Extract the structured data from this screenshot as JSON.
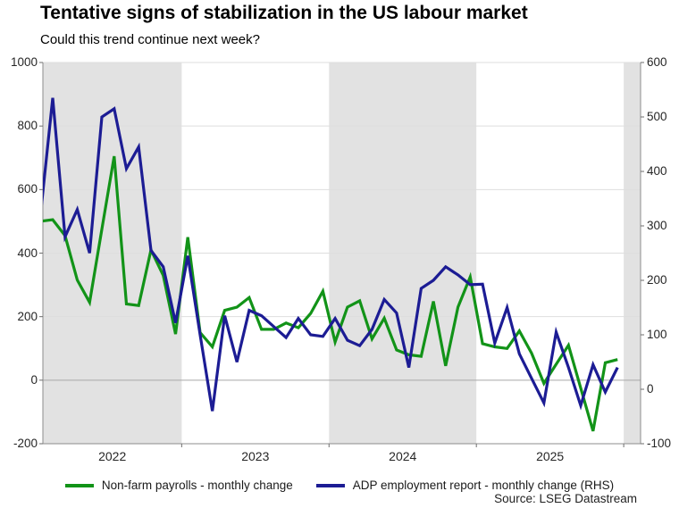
{
  "chart_data": {
    "type": "line",
    "title": "Tentative signs of stabilization in the US labour market",
    "subtitle": "Could this trend continue next week?",
    "source": "Source: LSEG Datastream",
    "x_year_labels": [
      "2022",
      "2023",
      "2024",
      "2025"
    ],
    "grid": "horizontal-only",
    "legend_position": "bottom-center",
    "band_color": "#e2e2e2",
    "axes": {
      "left": {
        "min": -200,
        "max": 1000,
        "ticks": [
          1000,
          800,
          600,
          400,
          200,
          0,
          -200
        ]
      },
      "right": {
        "min": -100,
        "max": 600,
        "ticks": [
          600,
          500,
          400,
          300,
          200,
          100,
          0,
          -100
        ]
      }
    },
    "months": [
      "2022-01",
      "2022-02",
      "2022-03",
      "2022-04",
      "2022-05",
      "2022-06",
      "2022-07",
      "2022-08",
      "2022-09",
      "2022-10",
      "2022-11",
      "2022-12",
      "2023-01",
      "2023-02",
      "2023-03",
      "2023-04",
      "2023-05",
      "2023-06",
      "2023-07",
      "2023-08",
      "2023-09",
      "2023-10",
      "2023-11",
      "2023-12",
      "2024-01",
      "2024-02",
      "2024-03",
      "2024-04",
      "2024-05",
      "2024-06",
      "2024-07",
      "2024-08",
      "2024-09",
      "2024-10",
      "2024-11",
      "2024-12",
      "2025-01",
      "2025-02",
      "2025-03",
      "2025-04",
      "2025-05",
      "2025-06",
      "2025-07",
      "2025-08",
      "2025-09",
      "2025-10",
      "2025-11",
      "2025-12"
    ],
    "series": [
      {
        "name": "Non-farm payrolls - monthly change",
        "axis": "left",
        "color": "#129318",
        "values": [
          500,
          505,
          455,
          315,
          245,
          475,
          705,
          240,
          235,
          410,
          330,
          145,
          450,
          150,
          105,
          220,
          230,
          260,
          160,
          160,
          180,
          165,
          210,
          280,
          120,
          230,
          250,
          130,
          195,
          95,
          80,
          75,
          248,
          45,
          230,
          325,
          115,
          105,
          100,
          155,
          85,
          -10,
          50,
          110,
          -25,
          -160,
          55,
          65
        ]
      },
      {
        "name": "ADP employment report - monthly change (RHS)",
        "axis": "right",
        "color": "#1c1c94",
        "values": [
          320,
          535,
          280,
          330,
          250,
          500,
          515,
          405,
          445,
          255,
          225,
          122,
          245,
          100,
          -40,
          135,
          50,
          145,
          135,
          115,
          95,
          130,
          100,
          97,
          130,
          90,
          80,
          110,
          165,
          140,
          40,
          185,
          200,
          225,
          210,
          192,
          193,
          85,
          150,
          65,
          20,
          -25,
          105,
          40,
          -30,
          45,
          -5,
          40
        ]
      }
    ],
    "colors": {
      "gridline": "#dedede",
      "zero_line": "#a8a8a8",
      "axis_line": "#8c8c8c",
      "tick_mark": "#6e6e6e",
      "label_text": "#262626"
    }
  }
}
